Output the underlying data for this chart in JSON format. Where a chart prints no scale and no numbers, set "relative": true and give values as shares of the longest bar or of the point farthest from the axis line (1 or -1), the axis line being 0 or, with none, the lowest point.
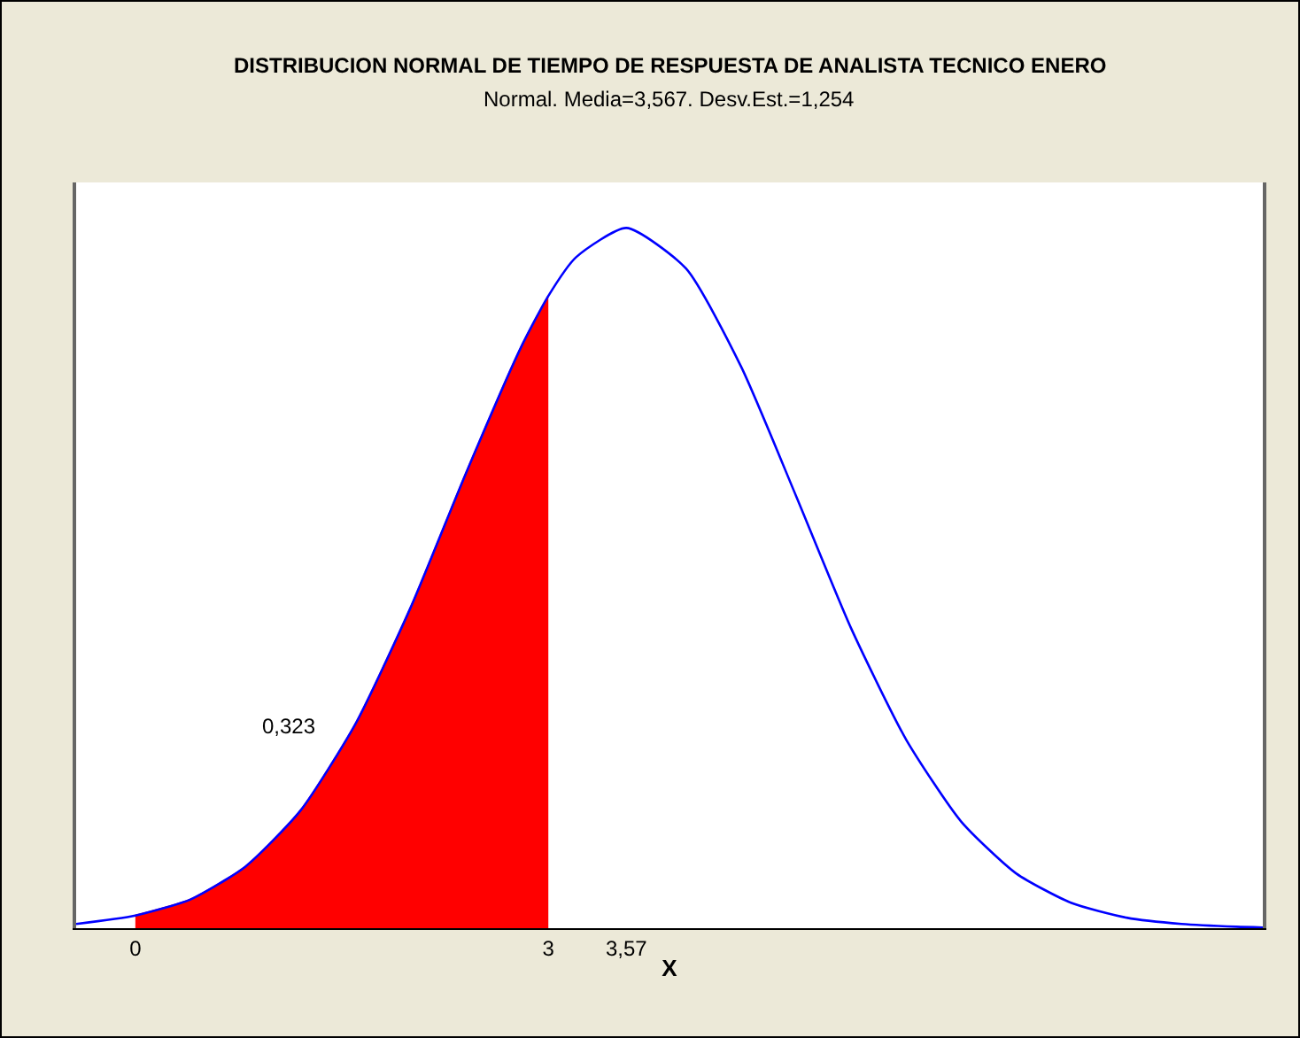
{
  "chart_data": {
    "type": "line",
    "title": "DISTRIBUCION NORMAL DE TIEMPO DE RESPUESTA DE ANALISTA TECNICO ENERO",
    "subtitle": "Normal. Media=3,567. Desv.Est.=1,254",
    "xlabel": "X",
    "relative": true,
    "xlim": [
      -0.43,
      8.19
    ],
    "xticks": [
      0,
      3,
      {
        "value": 3.567,
        "label": "3,57"
      }
    ],
    "grid": false,
    "series": [
      {
        "color": "#0000ff",
        "x": [
          -0.43,
          0,
          0.4,
          0.8,
          1.2,
          1.6,
          2.0,
          2.4,
          2.8,
          3.0,
          3.2,
          3.567,
          4.0,
          4.4,
          4.8,
          5.2,
          5.6,
          6.0,
          6.4,
          6.8,
          7.2,
          7.6,
          8.0,
          8.19
        ],
        "values": [
          0.006,
          0.018,
          0.041,
          0.088,
          0.168,
          0.292,
          0.458,
          0.649,
          0.829,
          0.903,
          0.958,
          1,
          0.942,
          0.802,
          0.617,
          0.428,
          0.269,
          0.152,
          0.078,
          0.036,
          0.015,
          0.006,
          0.002,
          0.001
        ]
      },
      {
        "type": "area",
        "color": "#ff0000",
        "x": [
          0,
          0.4,
          0.8,
          1.2,
          1.6,
          2.0,
          2.4,
          2.8,
          3.0
        ],
        "values": [
          0.018,
          0.041,
          0.088,
          0.168,
          0.292,
          0.458,
          0.649,
          0.829,
          0.903
        ]
      }
    ],
    "annotations": [
      "0,323"
    ]
  }
}
